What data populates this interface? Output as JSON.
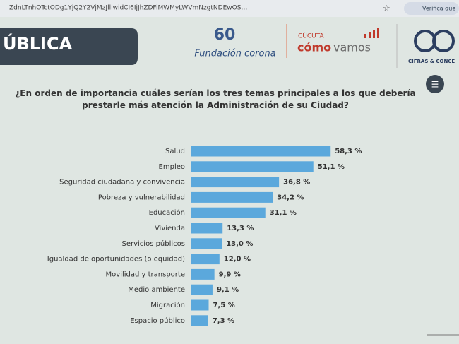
{
  "header": {
    "url": "…ZdnLTnhOTctODg1YjQ2Y2VjMzJlliwidCI6IjJhZDFiMWMyLWVmNzgtNDEwOS…",
    "verify": "Verifica que",
    "banner": "ÚBLICA",
    "foundation_number": "60",
    "foundation": "Fundación corona",
    "city": "CÚCUTA",
    "program_a": "cómo",
    "program_b": "vamos",
    "partner": "CIFRAS & CONCE"
  },
  "chart_data": {
    "type": "bar",
    "orientation": "horizontal",
    "title": "¿En orden de importancia cuáles serían los tres temas principales a los que debería prestarle más atención la Administración de su Ciudad?",
    "categories": [
      "Salud",
      "Empleo",
      "Seguridad ciudadana y convivencia",
      "Pobreza y vulnerabilidad",
      "Educación",
      "Vivienda",
      "Servicios públicos",
      "Igualdad de oportunidades (o equidad)",
      "Movilidad y transporte",
      "Medio ambiente",
      "Migración",
      "Espacio público"
    ],
    "values": [
      58.3,
      51.1,
      36.8,
      34.2,
      31.1,
      13.3,
      13.0,
      12.0,
      9.9,
      9.1,
      7.5,
      7.3
    ],
    "value_labels": [
      "58,3 %",
      "51,1 %",
      "36,8 %",
      "34,2 %",
      "31,1 %",
      "13,3 %",
      "13,0 %",
      "12,0 %",
      "9,9 %",
      "9,1 %",
      "7,5 %",
      "7,3 %"
    ],
    "color": "#5ba8dc"
  }
}
